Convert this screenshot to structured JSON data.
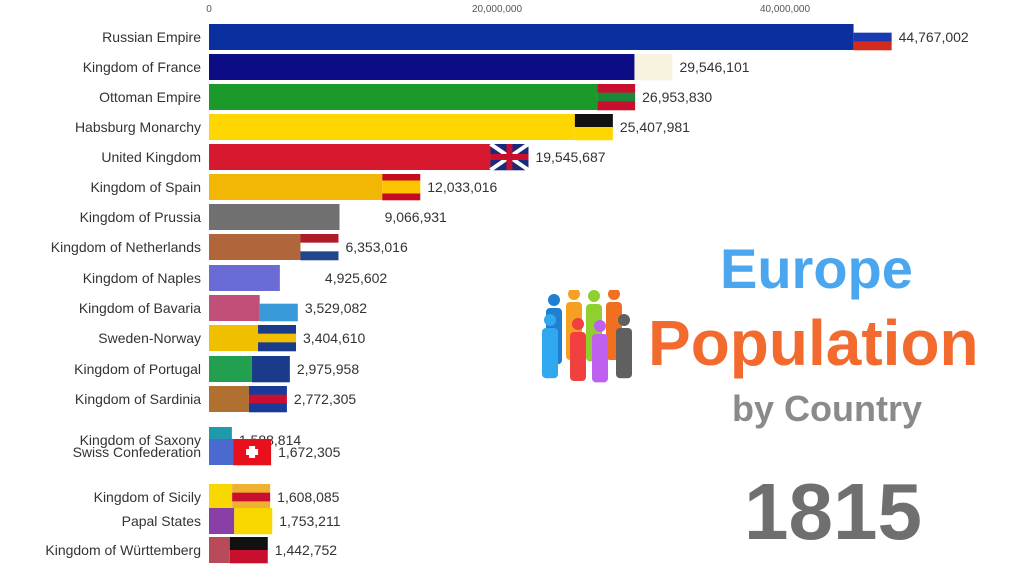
{
  "chart_data": {
    "type": "bar",
    "orientation": "horizontal",
    "title": "Europe Population",
    "subtitle": "by Country",
    "year": "1815",
    "xlim": [
      0,
      50000000
    ],
    "x_ticks": [
      {
        "value": 0,
        "label": "0"
      },
      {
        "value": 20000000,
        "label": "20,000,000"
      },
      {
        "value": 40000000,
        "label": "40,000,000"
      }
    ],
    "grid": false,
    "bars": [
      {
        "name": "Russian Empire",
        "value": 44767002,
        "label": "44,767,002",
        "color": "#0a2f9e",
        "flag": [
          "#ffffff",
          "#1a3ab0",
          "#d52b1e"
        ]
      },
      {
        "name": "Kingdom of France",
        "value": 29546101,
        "label": "29,546,101",
        "color": "#0c0c85",
        "flag": [
          "#f7f3df"
        ]
      },
      {
        "name": "Ottoman Empire",
        "value": 26953830,
        "label": "26,953,830",
        "color": "#1b9a2b",
        "flag": [
          "#c8102e",
          "#1a8a3a",
          "#c8102e"
        ]
      },
      {
        "name": "Habsburg Monarchy",
        "value": 25407981,
        "label": "25,407,981",
        "color": "#ffd700",
        "flag": [
          "#111111",
          "#ffd700"
        ]
      },
      {
        "name": "United Kingdom",
        "value": 19545687,
        "label": "19,545,687",
        "color": "#d7192f",
        "flag": [
          "#1a2a7a",
          "#c8102e",
          "#1a2a7a"
        ]
      },
      {
        "name": "Kingdom of Spain",
        "value": 12033016,
        "label": "12,033,016",
        "color": "#f2b705",
        "flag": [
          "#c60b1e",
          "#ffc400",
          "#ffc400",
          "#c60b1e"
        ]
      },
      {
        "name": "Kingdom of Prussia",
        "value": 9066931,
        "label": "9,066,931",
        "color": "#707070",
        "flag": [
          "#ffffff"
        ]
      },
      {
        "name": "Kingdom of Netherlands",
        "value": 6353016,
        "label": "6,353,016",
        "color": "#b0663a",
        "flag": [
          "#ae1c28",
          "#ffffff",
          "#21468b"
        ]
      },
      {
        "name": "Kingdom of Naples",
        "value": 4925602,
        "label": "4,925,602",
        "color": "#6b6bd6",
        "flag": [
          "#ffffff"
        ]
      },
      {
        "name": "Kingdom of Bavaria",
        "value": 3529082,
        "label": "3,529,082",
        "color": "#c0507a",
        "flag": [
          "#ffffff",
          "#3a9ad9",
          "#3a9ad9"
        ]
      },
      {
        "name": "Sweden-Norway",
        "value": 3404610,
        "label": "3,404,610",
        "color": "#f0c000",
        "flag": [
          "#1a3a8a",
          "#f0c000",
          "#1a3a8a"
        ]
      },
      {
        "name": "Kingdom of Portugal",
        "value": 2975958,
        "label": "2,975,958",
        "color": "#22a050",
        "flag": [
          "#1a3a8a"
        ]
      },
      {
        "name": "Kingdom of Sardinia",
        "value": 2772305,
        "label": "2,772,305",
        "color": "#b07030",
        "flag": [
          "#1a3a9a",
          "#c8102e",
          "#1a3a9a"
        ]
      },
      {
        "name": "Kingdom of Saxony",
        "value": 1588814,
        "label": "1,588,814",
        "color": "#1f9aaa",
        "flag": []
      },
      {
        "name": "Swiss Confederation",
        "value": 1672305,
        "label": "1,672,305",
        "color": "#4a6ad0",
        "flag": [
          "#e8101a"
        ]
      },
      {
        "name": "Kingdom of Sicily",
        "value": 1608085,
        "label": "1,608,085",
        "color": "#f8d800",
        "flag": [
          "#f0b030",
          "#c8102e",
          "#f0b030"
        ]
      },
      {
        "name": "Papal States",
        "value": 1753211,
        "label": "1,753,211",
        "color": "#8a3fa8",
        "flag": [
          "#f8d800"
        ]
      },
      {
        "name": "Kingdom of Württemberg",
        "value": 1442752,
        "label": "1,442,752",
        "color": "#b84a5a",
        "flag": [
          "#111111",
          "#c8102e"
        ]
      }
    ]
  },
  "legend_icon": "people-group-icon"
}
